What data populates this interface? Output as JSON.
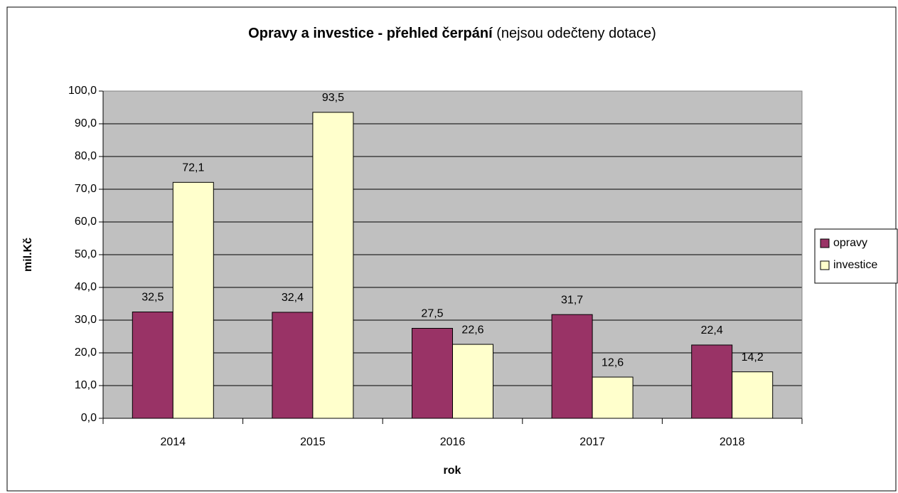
{
  "chart_data": {
    "type": "bar",
    "title": "Opravy a investice - přehled čerpání",
    "subtitle": "(nejsou odečteny dotace)",
    "x_label": "rok",
    "y_label": "mil.Kč",
    "categories": [
      "2014",
      "2015",
      "2016",
      "2017",
      "2018"
    ],
    "series": [
      {
        "name": "opravy",
        "color": "#993366",
        "values": [
          32.5,
          32.4,
          27.5,
          31.7,
          22.4
        ],
        "value_labels": [
          "32,5",
          "32,4",
          "27,5",
          "31,7",
          "22,4"
        ]
      },
      {
        "name": "investice",
        "color": "#ffffcc",
        "values": [
          72.1,
          93.5,
          22.6,
          12.6,
          14.2
        ],
        "value_labels": [
          "72,1",
          "93,5",
          "22,6",
          "12,6",
          "14,2"
        ]
      }
    ],
    "ylim": [
      0,
      100
    ],
    "yticks": [
      {
        "value": 0,
        "label": "0,0"
      },
      {
        "value": 10,
        "label": "10,0"
      },
      {
        "value": 20,
        "label": "20,0"
      },
      {
        "value": 30,
        "label": "30,0"
      },
      {
        "value": 40,
        "label": "40,0"
      },
      {
        "value": 50,
        "label": "50,0"
      },
      {
        "value": 60,
        "label": "60,0"
      },
      {
        "value": 70,
        "label": "70,0"
      },
      {
        "value": 80,
        "label": "80,0"
      },
      {
        "value": 90,
        "label": "90,0"
      },
      {
        "value": 100,
        "label": "100,0"
      }
    ],
    "grid": true,
    "legend": "right",
    "plot_background": "#c0c0c0"
  }
}
